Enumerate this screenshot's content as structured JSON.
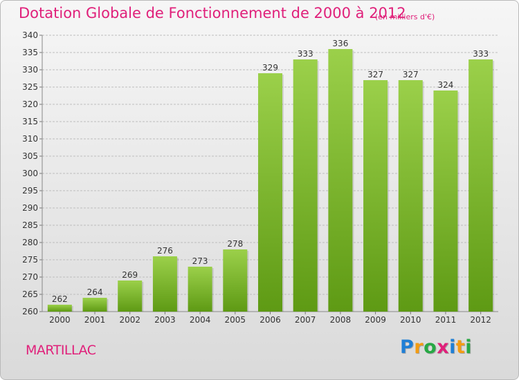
{
  "title": "Dotation Globale de Fonctionnement de 2000 à 2012",
  "subtitle": "(en milliers d'€)",
  "place": "MARTILLAC",
  "brand": {
    "name": "Proxiti",
    "letters": [
      {
        "ch": "P",
        "color": "#1e7fd6"
      },
      {
        "ch": "r",
        "color": "#f39c12"
      },
      {
        "ch": "o",
        "color": "#27a844"
      },
      {
        "ch": "x",
        "color": "#e0207a"
      },
      {
        "ch": "i",
        "color": "#1e7fd6"
      },
      {
        "ch": "t",
        "color": "#f39c12"
      },
      {
        "ch": "i",
        "color": "#27a844"
      }
    ]
  },
  "colors": {
    "title": "#e0207a",
    "bar_top": "#9bd04a",
    "bar_bottom": "#5e9a14",
    "grid": "#bdbdbd",
    "axis_text": "#333333"
  },
  "chart_data": {
    "type": "bar",
    "title": "Dotation Globale de Fonctionnement de 2000 à 2012",
    "subtitle": "(en milliers d'€)",
    "categories": [
      "2000",
      "2001",
      "2002",
      "2003",
      "2004",
      "2005",
      "2006",
      "2007",
      "2008",
      "2009",
      "2010",
      "2011",
      "2012"
    ],
    "values": [
      262,
      264,
      269,
      276,
      273,
      278,
      329,
      333,
      336,
      327,
      327,
      324,
      333
    ],
    "ylim": [
      260,
      340
    ],
    "yticks": [
      260,
      265,
      270,
      275,
      280,
      285,
      290,
      295,
      300,
      305,
      310,
      315,
      320,
      325,
      330,
      335,
      340
    ],
    "grid": true,
    "xlabel": "",
    "ylabel": ""
  }
}
